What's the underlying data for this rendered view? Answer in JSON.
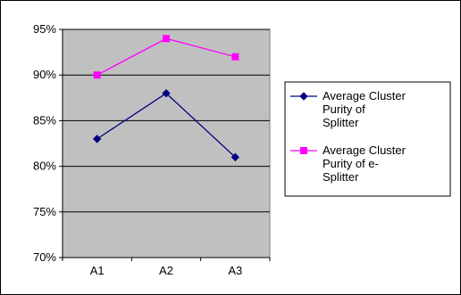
{
  "chart_data": {
    "type": "line",
    "categories": [
      "A1",
      "A2",
      "A3"
    ],
    "series": [
      {
        "name": "Average Cluster Purity of Splitter",
        "name_lines": [
          "Average Cluster",
          "Purity of",
          "Splitter"
        ],
        "values": [
          83,
          88,
          81
        ],
        "color": "#000080",
        "marker": "diamond"
      },
      {
        "name": "Average Cluster Purity of e-Splitter",
        "name_lines": [
          "Average Cluster",
          "Purity of e-",
          "Splitter"
        ],
        "values": [
          90,
          94,
          92
        ],
        "color": "#FF00FF",
        "marker": "square"
      }
    ],
    "yticks": [
      "70%",
      "75%",
      "80%",
      "85%",
      "90%",
      "95%"
    ],
    "ylim": [
      70,
      95
    ],
    "grid": true,
    "plot_background": "#C0C0C0",
    "legend_position": "right"
  }
}
